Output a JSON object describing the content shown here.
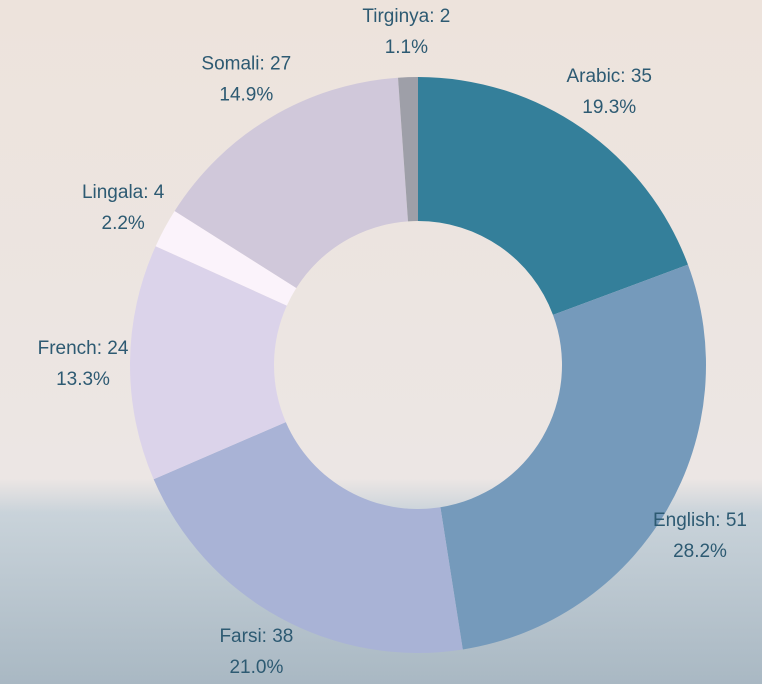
{
  "chart_data": {
    "type": "donut",
    "values": [
      35,
      51,
      38,
      24,
      4,
      27,
      2
    ],
    "value_labels": [
      "Arabic: 35",
      "English: 51",
      "Farsi: 38",
      "French: 24",
      "Lingala: 4",
      "Somali: 27",
      "Tirginya: 2"
    ],
    "percents": [
      19.3,
      28.2,
      21.0,
      13.3,
      2.2,
      14.9,
      1.1
    ],
    "percent_labels": [
      "19.3%",
      "28.2%",
      "21.0%",
      "13.3%",
      "2.2%",
      "14.9%",
      "1.1%"
    ],
    "colors": [
      "#347f9a",
      "#759abb",
      "#a9b3d6",
      "#dbd3ea",
      "#fbf3fb",
      "#d0c8da",
      "#9e9fa8"
    ]
  }
}
